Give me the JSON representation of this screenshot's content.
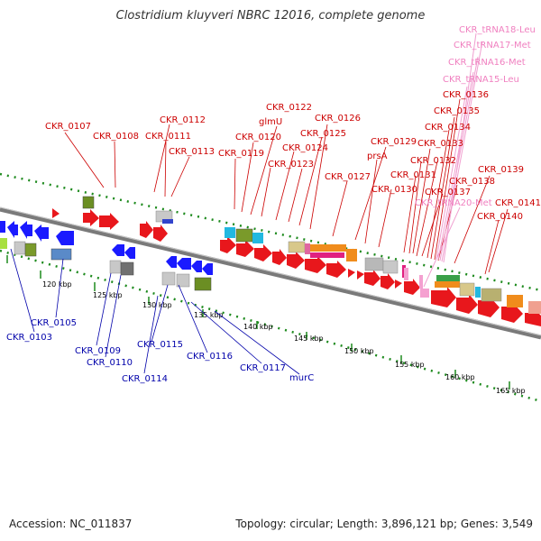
{
  "title": "Clostridium kluyveri NBRC 12016, complete genome",
  "accession": "Accession: NC_011837",
  "topology": "Topology: circular; Length: 3,896,121 bp; Genes: 3,549",
  "colors": {
    "forward_gene": "#e8171c",
    "reverse_gene": "#1a1aff",
    "top_label": "#cc0000",
    "bottom_label": "#0000aa",
    "trna_label": "#f080c0",
    "dotted_track": "#1d8a1d",
    "backbone": "#808080"
  },
  "scale_ticks": [
    "120 kbp",
    "125 kbp",
    "130 kbp",
    "135 kbp",
    "140 kbp",
    "145 kbp",
    "150 kbp",
    "155 kbp",
    "160 kbp",
    "165 kbp"
  ],
  "top_labels": [
    {
      "text": "CKR_tRNA18-Leu",
      "color": "trna"
    },
    {
      "text": "CKR_tRNA17-Met",
      "color": "trna"
    },
    {
      "text": "CKR_tRNA16-Met",
      "color": "trna"
    },
    {
      "text": "CKR_tRNA15-Leu",
      "color": "trna"
    },
    {
      "text": "CKR_0136",
      "color": "red"
    },
    {
      "text": "CKR_0135",
      "color": "red"
    },
    {
      "text": "CKR_0122",
      "color": "red"
    },
    {
      "text": "CKR_0126",
      "color": "red"
    },
    {
      "text": "CKR_0112",
      "color": "red"
    },
    {
      "text": "glmU",
      "color": "red"
    },
    {
      "text": "CKR_0134",
      "color": "red"
    },
    {
      "text": "CKR_0107",
      "color": "red"
    },
    {
      "text": "CKR_0125",
      "color": "red"
    },
    {
      "text": "CKR_0108",
      "color": "red"
    },
    {
      "text": "CKR_0111",
      "color": "red"
    },
    {
      "text": "CKR_0120",
      "color": "red"
    },
    {
      "text": "CKR_0129",
      "color": "red"
    },
    {
      "text": "CKR_0133",
      "color": "red"
    },
    {
      "text": "CKR_0124",
      "color": "red"
    },
    {
      "text": "CKR_0113",
      "color": "red"
    },
    {
      "text": "CKR_0119",
      "color": "red"
    },
    {
      "text": "prsA",
      "color": "red"
    },
    {
      "text": "CKR_0132",
      "color": "red"
    },
    {
      "text": "CKR_0123",
      "color": "red"
    },
    {
      "text": "CKR_0139",
      "color": "red"
    },
    {
      "text": "CKR_0131",
      "color": "red"
    },
    {
      "text": "CKR_0127",
      "color": "red"
    },
    {
      "text": "CKR_0138",
      "color": "red"
    },
    {
      "text": "CKR_0130",
      "color": "red"
    },
    {
      "text": "CKR_0137",
      "color": "red"
    },
    {
      "text": "CKR_tRNA20-Met",
      "color": "trna"
    },
    {
      "text": "CKR_0141",
      "color": "red"
    },
    {
      "text": "CKR_0140",
      "color": "red"
    }
  ],
  "bottom_labels": [
    {
      "text": "CKR_0105"
    },
    {
      "text": "CKR_0103"
    },
    {
      "text": "CKR_0109"
    },
    {
      "text": "CKR_0110"
    },
    {
      "text": "CKR_0115"
    },
    {
      "text": "CKR_0116"
    },
    {
      "text": "CKR_0114"
    },
    {
      "text": "CKR_0117"
    },
    {
      "text": "murC"
    }
  ]
}
